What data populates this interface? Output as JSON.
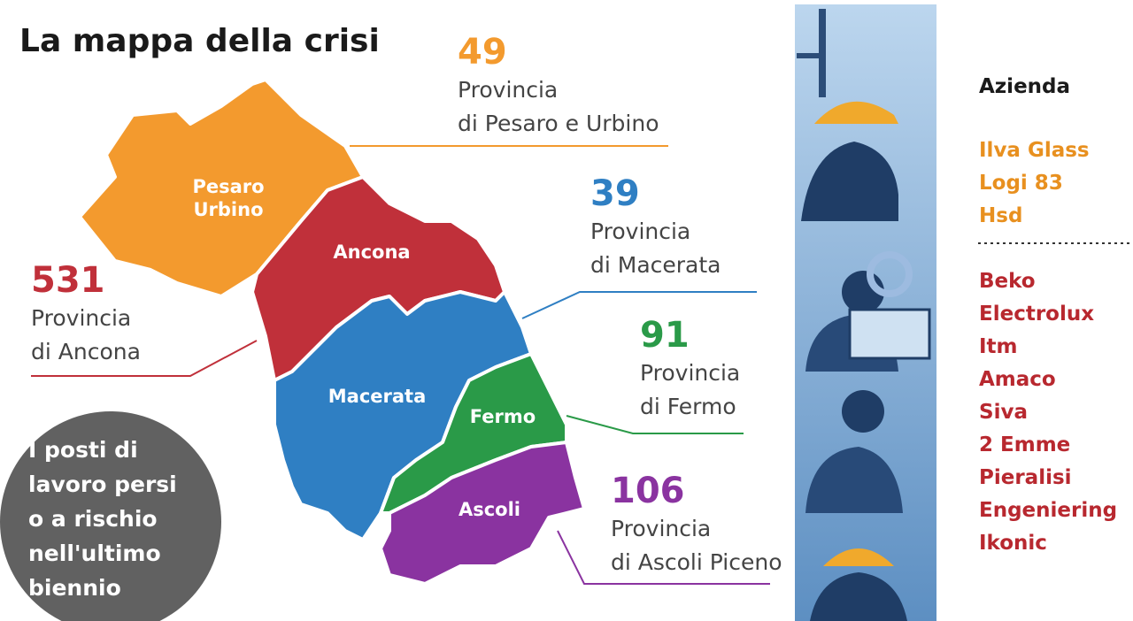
{
  "title": "La mappa della crisi",
  "provinces": [
    {
      "map_label": [
        "Pesaro",
        "Urbino"
      ],
      "number": 49,
      "name": [
        "Provincia",
        "di Pesaro e Urbino"
      ],
      "color": "#f39a2e"
    },
    {
      "map_label": [
        "Ancona"
      ],
      "number": 531,
      "name": [
        "Provincia",
        "di Ancona"
      ],
      "color": "#c0303a"
    },
    {
      "map_label": [
        "Macerata"
      ],
      "number": 39,
      "name": [
        "Provincia",
        "di Macerata"
      ],
      "color": "#2f7fc3"
    },
    {
      "map_label": [
        "Fermo"
      ],
      "number": 91,
      "name": [
        "Provincia",
        "di Fermo"
      ],
      "color": "#2a9a48"
    },
    {
      "map_label": [
        "Ascoli"
      ],
      "number": 106,
      "name": [
        "Provincia",
        "di Ascoli Piceno"
      ],
      "color": "#8a33a0"
    }
  ],
  "note": [
    "I posti di",
    "lavoro persi",
    "o a rischio",
    "nell'ultimo",
    "biennio"
  ],
  "companies": {
    "header": "Azienda",
    "groups": [
      {
        "color": "#e8901f",
        "names": [
          "Ilva Glass",
          "Logi 83",
          "Hsd"
        ]
      },
      {
        "color": "#b8282f",
        "names": [
          "Beko",
          "Electrolux",
          "Itm",
          "Amaco",
          "Siva",
          "2 Emme",
          "Pieralisi",
          "Engeniering",
          "Ikonic"
        ]
      }
    ]
  }
}
